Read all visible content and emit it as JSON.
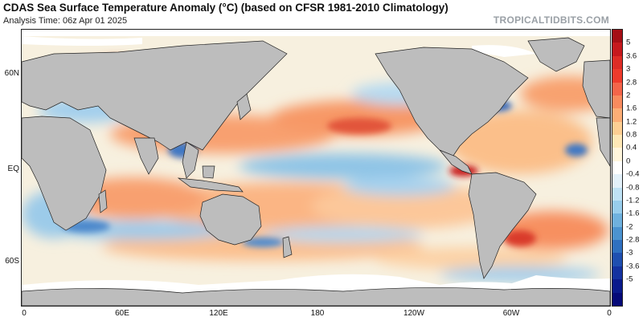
{
  "header": {
    "title": "CDAS Sea Surface Temperature Anomaly (°C) (based on CFSR 1981-2010 Climatology)",
    "analysis_time": "Analysis Time: 06z Apr 01 2025",
    "brand": "TROPICALTIDBITS.COM"
  },
  "map": {
    "projection": "equirectangular, Pacific-centered",
    "land_color": "#bdbdbd",
    "no_data_color": "#ffffff",
    "lat_labels": [
      {
        "id": "60n",
        "text": "60N"
      },
      {
        "id": "eq",
        "text": "EQ"
      },
      {
        "id": "60s",
        "text": "60S"
      }
    ],
    "lon_labels": [
      {
        "id": "0w",
        "text": "0"
      },
      {
        "id": "60e",
        "text": "60E"
      },
      {
        "id": "120e",
        "text": "120E"
      },
      {
        "id": "180",
        "text": "180"
      },
      {
        "id": "120w",
        "text": "120W"
      },
      {
        "id": "60w",
        "text": "60W"
      },
      {
        "id": "0e",
        "text": "0"
      }
    ]
  },
  "colorbar": {
    "labels": [
      "5",
      "3.6",
      "3",
      "2.8",
      "2",
      "1.6",
      "1.2",
      "0.8",
      "0.4",
      "0",
      "-0.4",
      "-0.8",
      "-1.2",
      "-1.6",
      "-2",
      "-2.8",
      "-3",
      "-3.6",
      "-5"
    ],
    "colors": [
      "#a50f15",
      "#c6191d",
      "#de2d26",
      "#ef3b2c",
      "#f4654a",
      "#f88b5e",
      "#fcae76",
      "#fdcf93",
      "#fee8b6",
      "#fff6dc",
      "#ffffff",
      "#e3f1fa",
      "#bfe2f5",
      "#98cdec",
      "#6fb1de",
      "#4b93d0",
      "#2f70c0",
      "#1f4fb0",
      "#1432a0",
      "#0a1a8c",
      "#050a78"
    ]
  }
}
